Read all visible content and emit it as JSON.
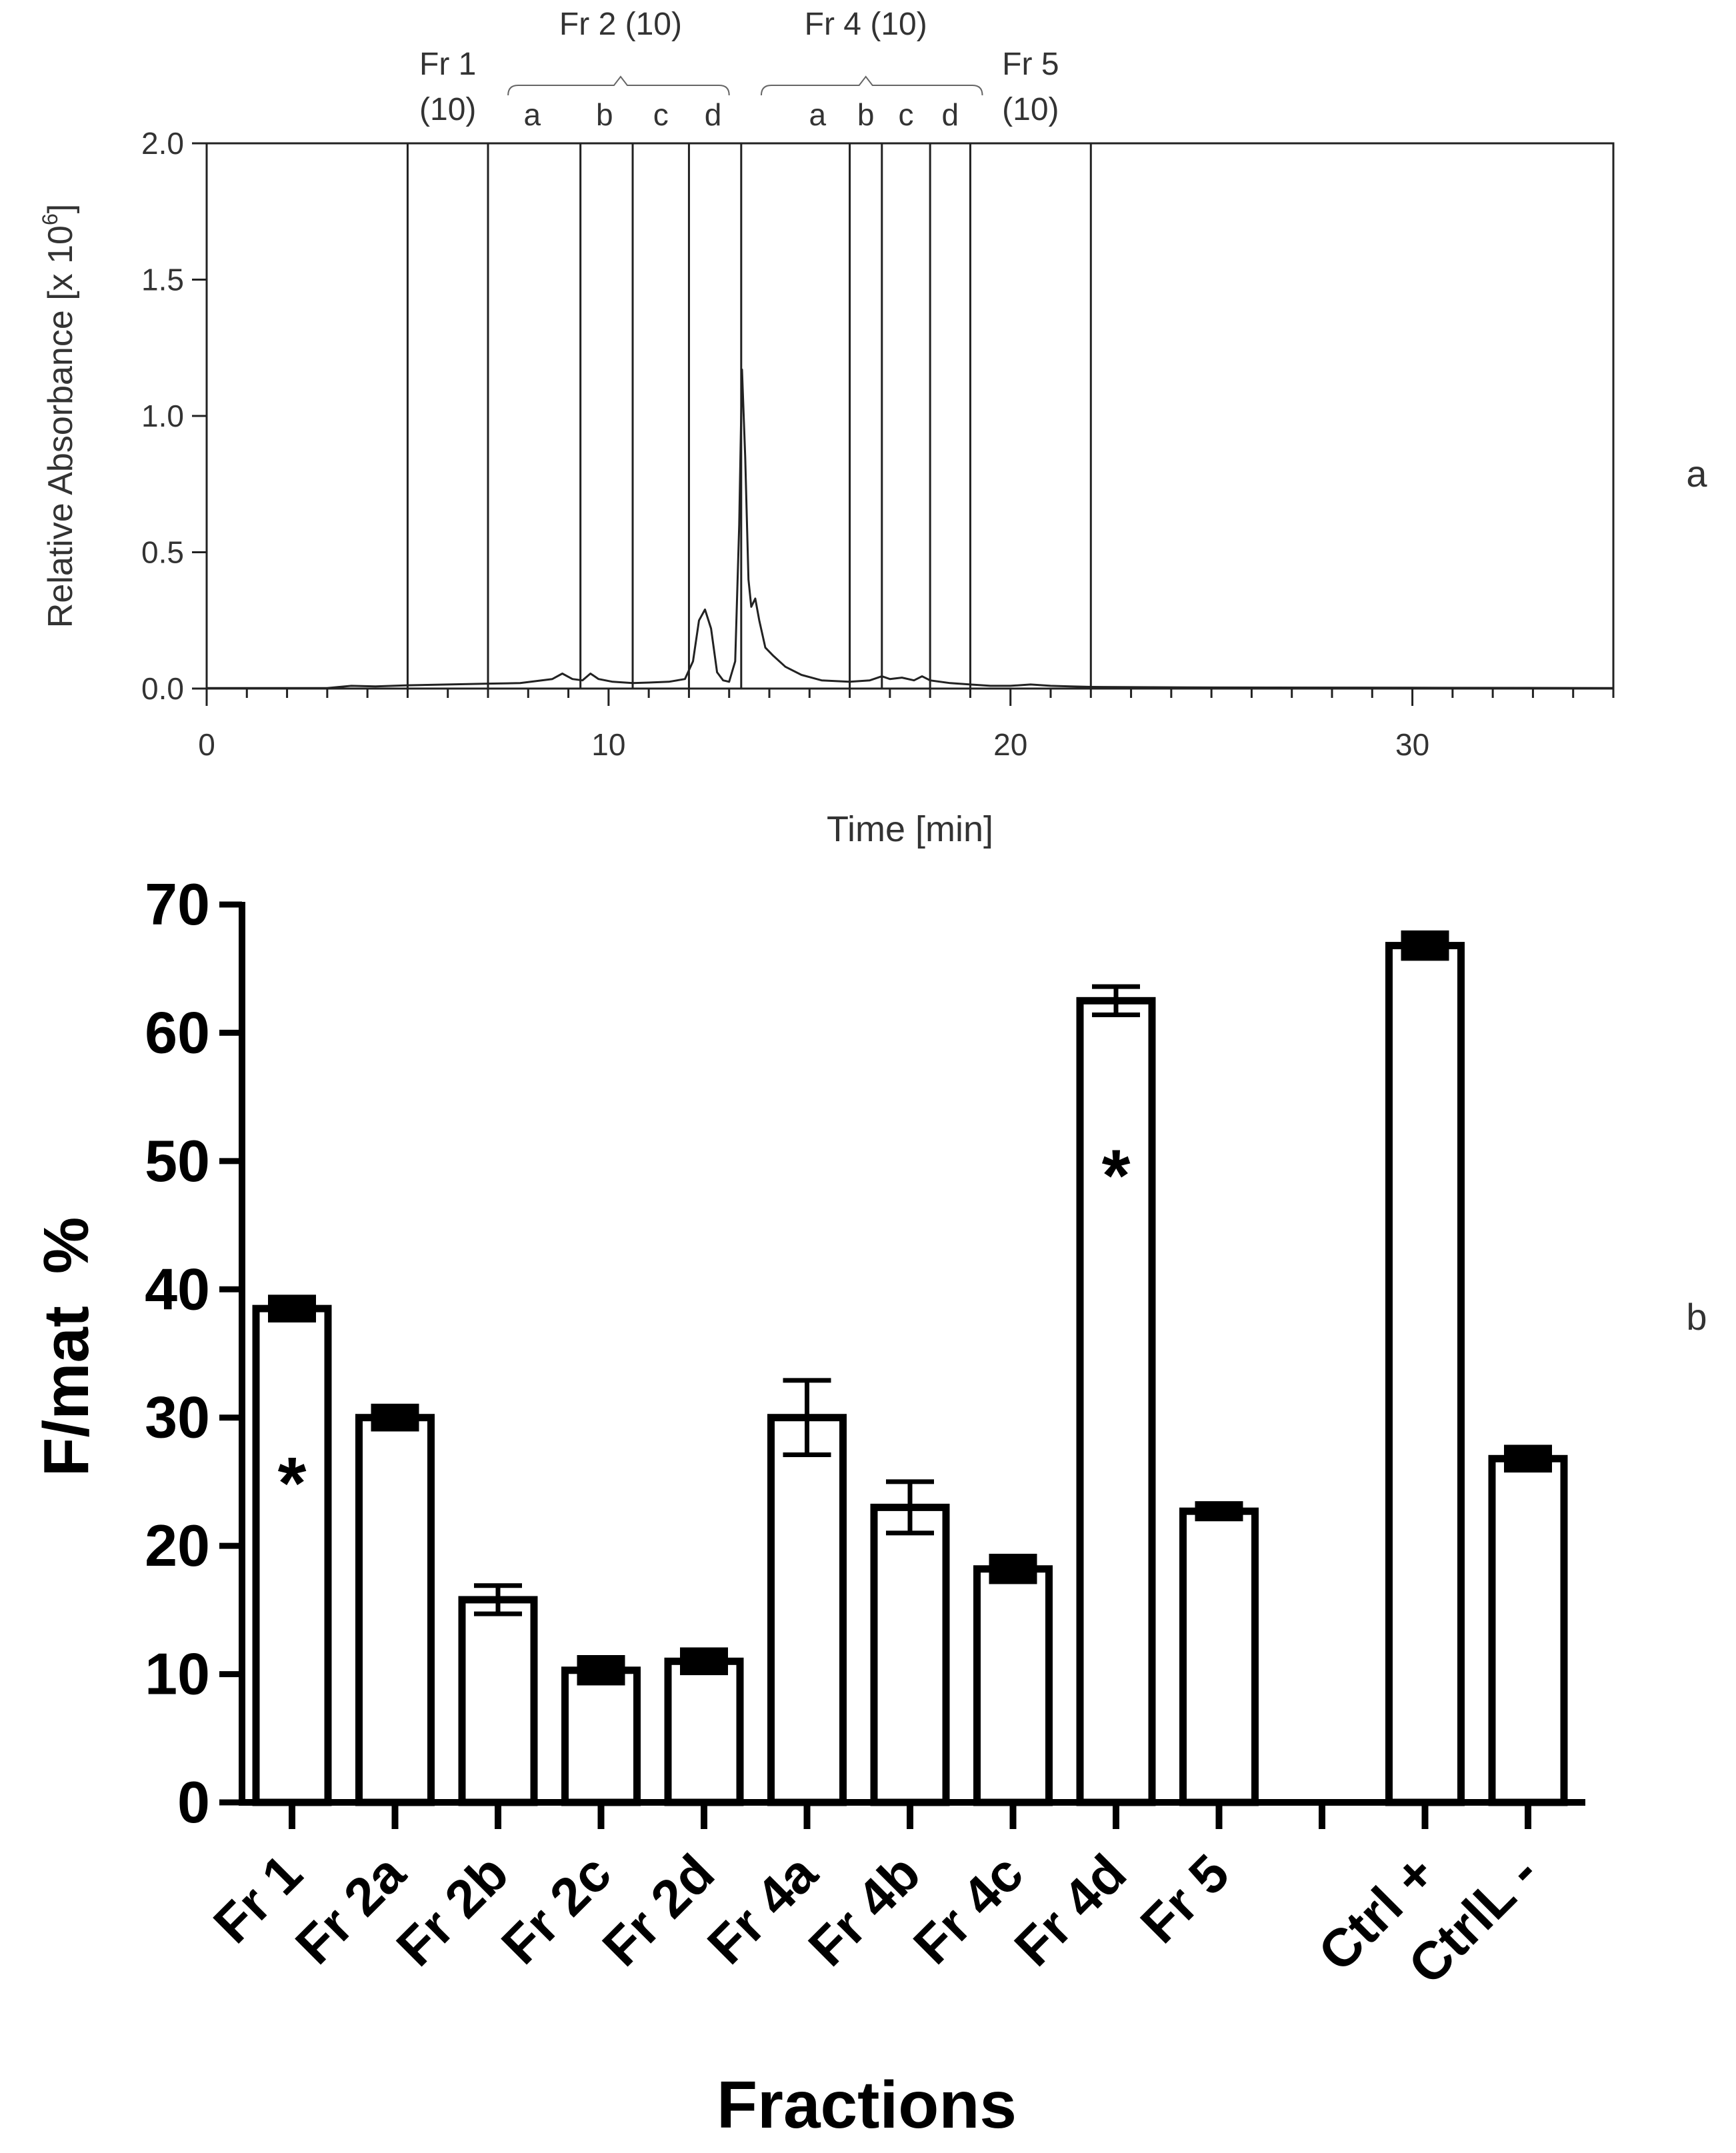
{
  "chart_data": [
    {
      "type": "line",
      "panel_label": "a",
      "xlabel": "Time [min]",
      "ylabel_main": "Relative Absorbance [x 10",
      "ylabel_exp": "6",
      "ylabel_close": "]",
      "xlim": [
        0,
        35
      ],
      "ylim": [
        0,
        2
      ],
      "x_ticks": [
        0,
        10,
        20,
        30
      ],
      "x_tick_labels": [
        "0",
        "10",
        "20",
        "30"
      ],
      "y_ticks": [
        0,
        0.5,
        1,
        1.5,
        2
      ],
      "y_tick_labels": [
        "0.0",
        "0.5",
        "1.0",
        "1.5",
        "2.0"
      ],
      "fraction_boundaries": [
        5,
        7,
        9.3,
        10.6,
        12,
        13.3,
        16,
        16.8,
        18,
        19,
        22
      ],
      "fraction_labels": [
        {
          "text": "Fr 1",
          "x": 6
        },
        {
          "text": "(10)",
          "x": 6
        },
        {
          "text": "Fr 2 (10)",
          "x": 10.3
        },
        {
          "text": "Fr 4 (10)",
          "x": 16.4
        },
        {
          "text": "Fr 5",
          "x": 20.5
        },
        {
          "text": "(10)",
          "x": 20.5
        }
      ],
      "sub_labels": [
        {
          "text": "a",
          "x": 8.1
        },
        {
          "text": "b",
          "x": 9.9
        },
        {
          "text": "c",
          "x": 11.3
        },
        {
          "text": "d",
          "x": 12.6
        },
        {
          "text": "a",
          "x": 15.2
        },
        {
          "text": "b",
          "x": 16.4
        },
        {
          "text": "c",
          "x": 17.4
        },
        {
          "text": "d",
          "x": 18.5
        }
      ],
      "brackets": [
        {
          "x0": 7.5,
          "x1": 13.0,
          "mid": 10.3
        },
        {
          "x0": 13.8,
          "x1": 19.3,
          "mid": 16.4
        }
      ],
      "series": [
        {
          "name": "chromatogram",
          "x": [
            0,
            3.0,
            3.6,
            4.2,
            5,
            6,
            7,
            7.8,
            8.6,
            8.85,
            9.1,
            9.35,
            9.55,
            9.75,
            10.1,
            10.6,
            11.0,
            11.5,
            11.9,
            12.1,
            12.25,
            12.4,
            12.55,
            12.7,
            12.85,
            13.0,
            13.15,
            13.25,
            13.32,
            13.4,
            13.48,
            13.55,
            13.65,
            13.75,
            13.9,
            14.1,
            14.4,
            14.8,
            15.3,
            16.0,
            16.5,
            16.8,
            17.0,
            17.3,
            17.6,
            17.8,
            18.0,
            18.5,
            19.0,
            19.5,
            20.0,
            20.5,
            21.0,
            21.5,
            22.0,
            25,
            30,
            35
          ],
          "y": [
            0.002,
            0.002,
            0.01,
            0.008,
            0.012,
            0.015,
            0.018,
            0.02,
            0.035,
            0.055,
            0.035,
            0.03,
            0.055,
            0.035,
            0.025,
            0.02,
            0.022,
            0.025,
            0.035,
            0.1,
            0.25,
            0.29,
            0.22,
            0.06,
            0.03,
            0.025,
            0.1,
            0.6,
            1.17,
            0.85,
            0.4,
            0.3,
            0.33,
            0.25,
            0.15,
            0.12,
            0.08,
            0.05,
            0.03,
            0.025,
            0.03,
            0.045,
            0.035,
            0.04,
            0.03,
            0.045,
            0.03,
            0.02,
            0.015,
            0.01,
            0.01,
            0.015,
            0.01,
            0.008,
            0.006,
            0.004,
            0.003,
            0.002
          ]
        }
      ]
    },
    {
      "type": "bar",
      "panel_label": "b",
      "xlabel": "Fractions",
      "ylabel_main": "F/mat",
      "ylabel_unit": "%",
      "ylim": [
        0,
        70
      ],
      "y_ticks": [
        0,
        10,
        20,
        30,
        40,
        50,
        60,
        70
      ],
      "y_tick_labels": [
        "0",
        "10",
        "20",
        "30",
        "40",
        "50",
        "60",
        "70"
      ],
      "categories": [
        "Fr 1",
        "Fr 2a",
        "Fr 2b",
        "Fr 2c",
        "Fr 2d",
        "Fr 4a",
        "Fr 4b",
        "Fr 4c",
        "Fr 4d",
        "Fr 5",
        "",
        "Ctrl +",
        "CtrlL -"
      ],
      "values": [
        38.5,
        30,
        15.8,
        10.3,
        11,
        30,
        23,
        18.2,
        62.5,
        22.7,
        null,
        66.8,
        26.8
      ],
      "errors": [
        0.9,
        0.9,
        1.1,
        1.0,
        0.9,
        2.9,
        2.0,
        1.0,
        1.1,
        0.6,
        null,
        1.0,
        0.9
      ],
      "significance_marker": "*",
      "significant": [
        "Fr 1",
        "Fr 4d"
      ]
    }
  ]
}
